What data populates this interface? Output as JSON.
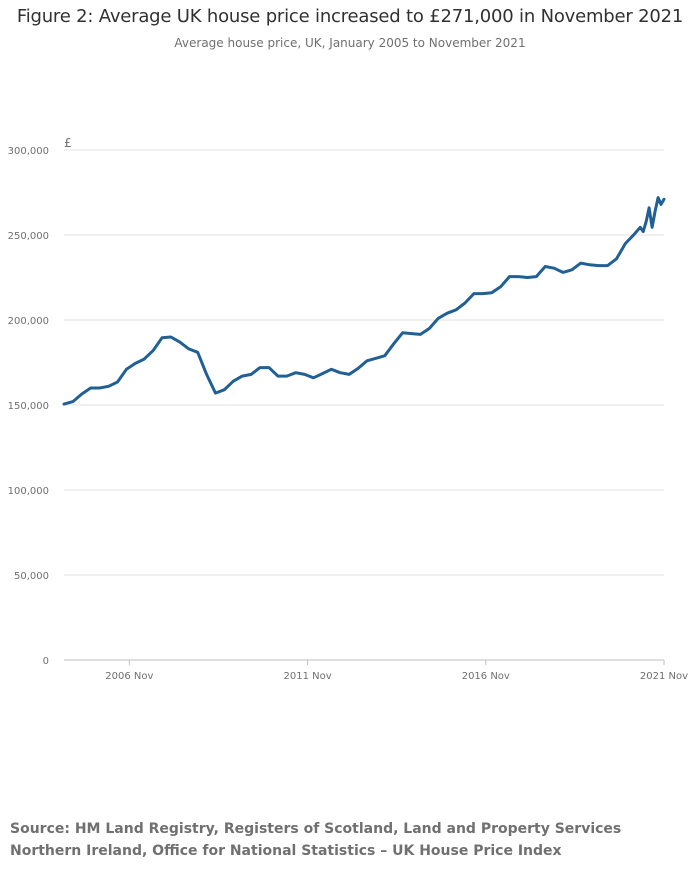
{
  "chart_data": {
    "type": "line",
    "title": "Figure 2: Average UK house price increased to £271,000 in November 2021",
    "subtitle": "Average house price, UK, January 2005 to November 2021",
    "ylabel": "£",
    "ylim": [
      0,
      300000
    ],
    "yticks": [
      "0",
      "50,000",
      "100,000",
      "150,000",
      "200,000",
      "250,000",
      "300,000"
    ],
    "yticks_values": [
      0,
      50000,
      100000,
      150000,
      200000,
      250000,
      300000
    ],
    "xticks": [
      {
        "label": "2006 Nov",
        "x": "2006-11"
      },
      {
        "label": "2011 Nov",
        "x": "2011-11"
      },
      {
        "label": "2016 Nov",
        "x": "2016-11"
      },
      {
        "label": "2021 Nov",
        "x": "2021-11"
      }
    ],
    "x_range": [
      "2005-01",
      "2021-11"
    ],
    "grid": true,
    "line_color": "#206095",
    "series": [
      {
        "name": "",
        "points": [
          [
            "2005-01",
            150500
          ],
          [
            "2005-04",
            152000
          ],
          [
            "2005-07",
            156500
          ],
          [
            "2005-10",
            160000
          ],
          [
            "2006-01",
            160000
          ],
          [
            "2006-04",
            161000
          ],
          [
            "2006-07",
            163500
          ],
          [
            "2006-10",
            171000
          ],
          [
            "2007-01",
            174500
          ],
          [
            "2007-04",
            177000
          ],
          [
            "2007-07",
            182000
          ],
          [
            "2007-10",
            189500
          ],
          [
            "2008-01",
            190000
          ],
          [
            "2008-04",
            187000
          ],
          [
            "2008-07",
            183000
          ],
          [
            "2008-10",
            181000
          ],
          [
            "2009-01",
            168000
          ],
          [
            "2009-04",
            157000
          ],
          [
            "2009-07",
            159000
          ],
          [
            "2009-10",
            164000
          ],
          [
            "2010-01",
            167000
          ],
          [
            "2010-04",
            168000
          ],
          [
            "2010-07",
            172000
          ],
          [
            "2010-10",
            172000
          ],
          [
            "2011-01",
            167000
          ],
          [
            "2011-04",
            167000
          ],
          [
            "2011-07",
            169000
          ],
          [
            "2011-10",
            168000
          ],
          [
            "2012-01",
            166000
          ],
          [
            "2012-04",
            168500
          ],
          [
            "2012-07",
            171000
          ],
          [
            "2012-10",
            169000
          ],
          [
            "2013-01",
            168000
          ],
          [
            "2013-04",
            171500
          ],
          [
            "2013-07",
            176000
          ],
          [
            "2013-10",
            177500
          ],
          [
            "2014-01",
            179000
          ],
          [
            "2014-04",
            186000
          ],
          [
            "2014-07",
            192500
          ],
          [
            "2014-10",
            192000
          ],
          [
            "2015-01",
            191500
          ],
          [
            "2015-04",
            195000
          ],
          [
            "2015-07",
            201000
          ],
          [
            "2015-10",
            204000
          ],
          [
            "2016-01",
            206000
          ],
          [
            "2016-04",
            210000
          ],
          [
            "2016-07",
            215500
          ],
          [
            "2016-10",
            215500
          ],
          [
            "2017-01",
            216000
          ],
          [
            "2017-04",
            219500
          ],
          [
            "2017-07",
            225500
          ],
          [
            "2017-10",
            225500
          ],
          [
            "2018-01",
            225000
          ],
          [
            "2018-04",
            225500
          ],
          [
            "2018-07",
            231500
          ],
          [
            "2018-10",
            230500
          ],
          [
            "2019-01",
            228000
          ],
          [
            "2019-04",
            229500
          ],
          [
            "2019-07",
            233500
          ],
          [
            "2019-10",
            232500
          ],
          [
            "2020-01",
            232000
          ],
          [
            "2020-04",
            232000
          ],
          [
            "2020-07",
            236000
          ],
          [
            "2020-10",
            245000
          ],
          [
            "2021-01",
            250500
          ],
          [
            "2021-03",
            254500
          ],
          [
            "2021-04",
            252000
          ],
          [
            "2021-05",
            258000
          ],
          [
            "2021-06",
            266000
          ],
          [
            "2021-07",
            254500
          ],
          [
            "2021-08",
            264000
          ],
          [
            "2021-09",
            272000
          ],
          [
            "2021-10",
            268000
          ],
          [
            "2021-11",
            271000
          ]
        ]
      }
    ]
  },
  "source": "Source: HM Land Registry, Registers of Scotland, Land and Property Services Northern Ireland, Office for National Statistics – UK House Price Index"
}
